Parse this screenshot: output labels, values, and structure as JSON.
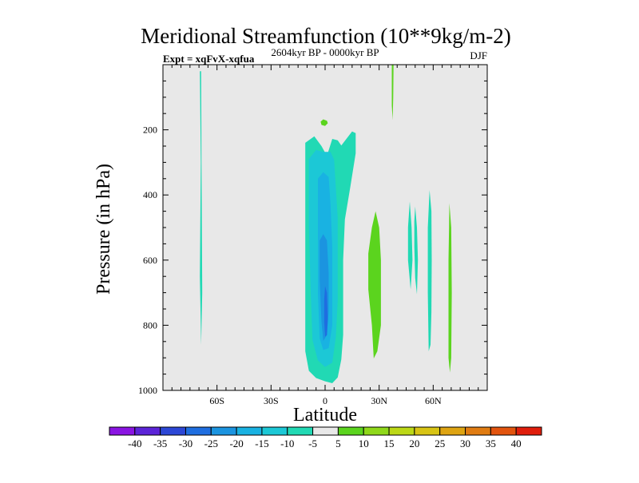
{
  "chart_data": {
    "type": "contour",
    "title": "Meridional Streamfunction (10**9kg/m-2)",
    "left_subtitle": "Expt = xqFvX-xqfua",
    "center_subtitle": "2604kyr BP - 0000kyr BP",
    "right_subtitle": "DJF",
    "xlabel": "Latitude",
    "ylabel": "Pressure (in hPa)",
    "xlim": [
      -90,
      90
    ],
    "ylim": [
      0,
      1000
    ],
    "x_ticks": [
      {
        "value": -60,
        "label": "60S"
      },
      {
        "value": -30,
        "label": "30S"
      },
      {
        "value": 0,
        "label": "0"
      },
      {
        "value": 30,
        "label": "30N"
      },
      {
        "value": 60,
        "label": "60N"
      }
    ],
    "y_ticks": [
      {
        "value": 200,
        "label": "200"
      },
      {
        "value": 400,
        "label": "400"
      },
      {
        "value": 600,
        "label": "600"
      },
      {
        "value": 800,
        "label": "800"
      },
      {
        "value": 1000,
        "label": "1000"
      }
    ],
    "colorbar": {
      "labels": [
        "-40",
        "-35",
        "-30",
        "-25",
        "-20",
        "-15",
        "-10",
        "-5",
        "5",
        "10",
        "15",
        "20",
        "25",
        "30",
        "35",
        "40"
      ],
      "colors": [
        "#8a14e2",
        "#5c24d8",
        "#2c47d6",
        "#1f6ee0",
        "#1b94e0",
        "#19b2e2",
        "#1cc8d6",
        "#21d9b4",
        "#e8e8e8",
        "#5bd41e",
        "#8fd81a",
        "#bcd816",
        "#d8c414",
        "#dea412",
        "#e07c12",
        "#e2540e",
        "#e01e0c"
      ]
    },
    "contours": [
      {
        "name": "sh-high-lat-negative-band",
        "level": "-5",
        "color": "#21d9b4",
        "points": [
          [
            -69.5,
            20
          ],
          [
            -69,
            300
          ],
          [
            -69.5,
            650
          ],
          [
            -68.8,
            860
          ],
          [
            -68.2,
            700
          ],
          [
            -68.6,
            300
          ],
          [
            -68.8,
            20
          ]
        ]
      },
      {
        "name": "tropical-cell-minus-5",
        "level": "-5",
        "color": "#21d9b4",
        "points": [
          [
            -11,
            240
          ],
          [
            -6,
            220
          ],
          [
            -2,
            250
          ],
          [
            1,
            280
          ],
          [
            4,
            228
          ],
          [
            7,
            232
          ],
          [
            9,
            248
          ],
          [
            15,
            205
          ],
          [
            17,
            210
          ],
          [
            17,
            272
          ],
          [
            14,
            375
          ],
          [
            11,
            475
          ],
          [
            10,
            600
          ],
          [
            10,
            725
          ],
          [
            10,
            830
          ],
          [
            9,
            905
          ],
          [
            7,
            960
          ],
          [
            4,
            978
          ],
          [
            0,
            972
          ],
          [
            -5,
            962
          ],
          [
            -9,
            940
          ],
          [
            -11,
            880
          ],
          [
            -11,
            700
          ],
          [
            -11,
            480
          ]
        ]
      },
      {
        "name": "tropical-cell-minus-10",
        "level": "-10",
        "color": "#1cc8d6",
        "points": [
          [
            -9,
            290
          ],
          [
            -5,
            262
          ],
          [
            -1,
            268
          ],
          [
            3,
            268
          ],
          [
            5,
            292
          ],
          [
            6,
            380
          ],
          [
            7,
            470
          ],
          [
            7,
            600
          ],
          [
            7,
            725
          ],
          [
            6,
            835
          ],
          [
            4,
            915
          ],
          [
            0,
            928
          ],
          [
            -4,
            908
          ],
          [
            -7,
            845
          ],
          [
            -8,
            700
          ],
          [
            -9,
            490
          ]
        ]
      },
      {
        "name": "tropical-cell-minus-15",
        "level": "-15",
        "color": "#19b2e2",
        "points": [
          [
            -4,
            350
          ],
          [
            -1,
            330
          ],
          [
            2,
            345
          ],
          [
            3,
            430
          ],
          [
            4,
            560
          ],
          [
            4,
            690
          ],
          [
            4,
            800
          ],
          [
            2,
            870
          ],
          [
            -1,
            876
          ],
          [
            -3,
            840
          ],
          [
            -4,
            700
          ],
          [
            -4,
            520
          ]
        ]
      },
      {
        "name": "tropical-cell-minus-20",
        "level": "-20",
        "color": "#1b94e0",
        "points": [
          [
            -3,
            540
          ],
          [
            -1,
            520
          ],
          [
            1,
            540
          ],
          [
            2,
            640
          ],
          [
            2,
            755
          ],
          [
            1,
            830
          ],
          [
            -1,
            848
          ],
          [
            -2,
            790
          ],
          [
            -3,
            660
          ]
        ]
      },
      {
        "name": "tropical-cell-minus-25",
        "level": "-25",
        "color": "#1f6ee0",
        "points": [
          [
            0,
            680
          ],
          [
            1,
            700
          ],
          [
            1.5,
            780
          ],
          [
            1,
            830
          ],
          [
            0,
            835
          ],
          [
            -0.5,
            790
          ],
          [
            -0.5,
            720
          ]
        ]
      },
      {
        "name": "equator-small-patch",
        "level": "10",
        "color": "#5bd41e",
        "points": [
          [
            -2.5,
            175
          ],
          [
            -1,
            168
          ],
          [
            1,
            172
          ],
          [
            1.5,
            180
          ],
          [
            0,
            188
          ],
          [
            -2,
            185
          ]
        ]
      },
      {
        "name": "nh-upper-positive-band",
        "level": "10",
        "color": "#5bd41e",
        "points": [
          [
            37,
            0
          ],
          [
            38,
            0
          ],
          [
            37.8,
            100
          ],
          [
            37.5,
            170
          ],
          [
            37,
            125
          ],
          [
            37,
            60
          ]
        ]
      },
      {
        "name": "nh-subtropical-positive-cell",
        "level": "10",
        "color": "#5bd41e",
        "points": [
          [
            28,
            450
          ],
          [
            30,
            500
          ],
          [
            31,
            600
          ],
          [
            31,
            700
          ],
          [
            31,
            800
          ],
          [
            29,
            880
          ],
          [
            27,
            902
          ],
          [
            26,
            800
          ],
          [
            24,
            690
          ],
          [
            24,
            580
          ],
          [
            26,
            500
          ]
        ]
      },
      {
        "name": "nh-mid-lat-negative-strip-a",
        "level": "-5",
        "color": "#21d9b4",
        "points": [
          [
            47,
            420
          ],
          [
            48,
            500
          ],
          [
            48.5,
            600
          ],
          [
            47.5,
            690
          ],
          [
            46,
            600
          ],
          [
            46,
            500
          ]
        ]
      },
      {
        "name": "nh-mid-lat-negative-strip-b",
        "level": "-5",
        "color": "#21d9b4",
        "points": [
          [
            50,
            435
          ],
          [
            51,
            500
          ],
          [
            51.5,
            600
          ],
          [
            51,
            705
          ],
          [
            50,
            655
          ],
          [
            49.5,
            560
          ],
          [
            49.5,
            480
          ]
        ]
      },
      {
        "name": "nh-mid-lat-negative-strip-c",
        "level": "-5",
        "color": "#21d9b4",
        "points": [
          [
            58,
            385
          ],
          [
            59,
            450
          ],
          [
            59.2,
            600
          ],
          [
            59,
            760
          ],
          [
            58.5,
            860
          ],
          [
            57.5,
            880
          ],
          [
            57,
            700
          ],
          [
            57,
            500
          ]
        ]
      },
      {
        "name": "nh-high-lat-positive-strip",
        "level": "10",
        "color": "#5bd41e",
        "points": [
          [
            69,
            425
          ],
          [
            70,
            500
          ],
          [
            70.3,
            700
          ],
          [
            70,
            900
          ],
          [
            69.3,
            945
          ],
          [
            68.5,
            900
          ],
          [
            68.5,
            600
          ],
          [
            68.8,
            500
          ]
        ]
      }
    ]
  }
}
